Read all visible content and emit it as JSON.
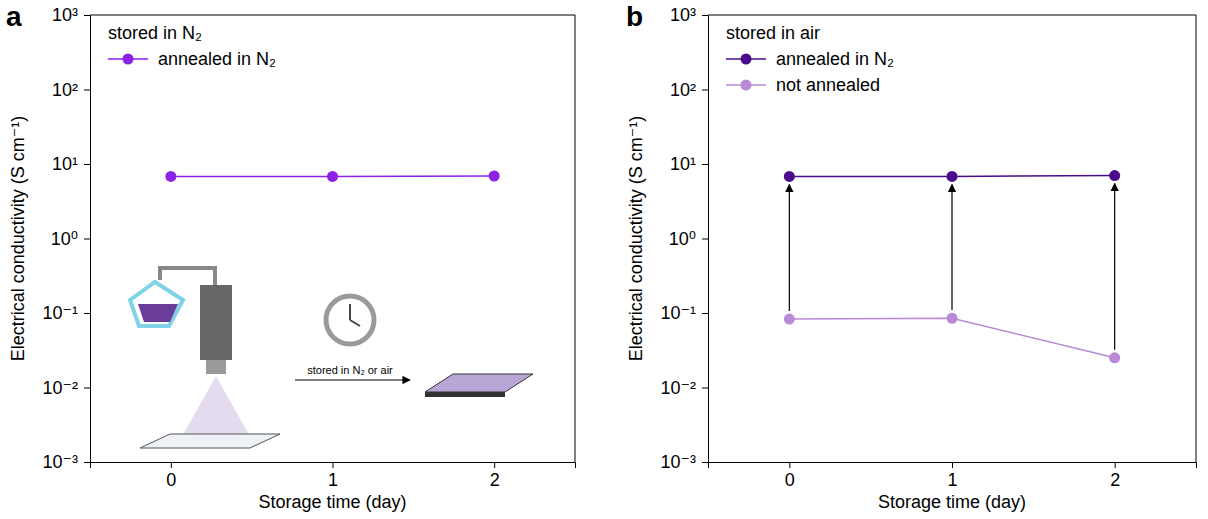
{
  "chart_data": [
    {
      "type": "line",
      "title": "a",
      "legend_title": "stored in N₂",
      "legend": "upper left",
      "annotation": "stored in N₂ or air",
      "xlabel": "Storage time (day)",
      "ylabel": "Electrical conductivity (S cm⁻¹)",
      "x": [
        0,
        1,
        2
      ],
      "xlim": [
        -0.5,
        2.5
      ],
      "xticks": [
        0,
        1,
        2
      ],
      "log": "y",
      "ylim": [
        0.001,
        1000
      ],
      "yticks": [
        {
          "value": 0.001,
          "label": "10⁻³"
        },
        {
          "value": 0.01,
          "label": "10⁻²"
        },
        {
          "value": 0.1,
          "label": "10⁻¹"
        },
        {
          "value": 1,
          "label": "10⁰"
        },
        {
          "value": 10,
          "label": "10¹"
        },
        {
          "value": 100,
          "label": "10²"
        },
        {
          "value": 1000,
          "label": "10³"
        }
      ],
      "marker": "circle",
      "series": [
        {
          "name": "annealed in N₂",
          "color": "#8b22e6",
          "values": [
            6.8,
            6.8,
            6.9
          ]
        }
      ]
    },
    {
      "type": "line",
      "title": "b",
      "legend_title": "stored in air",
      "legend": "upper left",
      "xlabel": "Storage time (day)",
      "ylabel": "Electrical conductivity (S cm⁻¹)",
      "x": [
        0,
        1,
        2
      ],
      "xlim": [
        -0.5,
        2.5
      ],
      "xticks": [
        0,
        1,
        2
      ],
      "log": "y",
      "ylim": [
        0.001,
        1000
      ],
      "yticks": [
        {
          "value": 0.001,
          "label": "10⁻³"
        },
        {
          "value": 0.01,
          "label": "10⁻²"
        },
        {
          "value": 0.1,
          "label": "10⁻¹"
        },
        {
          "value": 1,
          "label": "10⁰"
        },
        {
          "value": 10,
          "label": "10¹"
        },
        {
          "value": 100,
          "label": "10²"
        },
        {
          "value": 1000,
          "label": "10³"
        }
      ],
      "marker": "circle",
      "series": [
        {
          "name": "annealed in N₂",
          "color": "#4a0c8c",
          "values": [
            6.8,
            6.8,
            7.0
          ]
        },
        {
          "name": "not annealed",
          "color": "#b98ad8",
          "values": [
            0.083,
            0.085,
            0.025
          ]
        }
      ]
    }
  ]
}
